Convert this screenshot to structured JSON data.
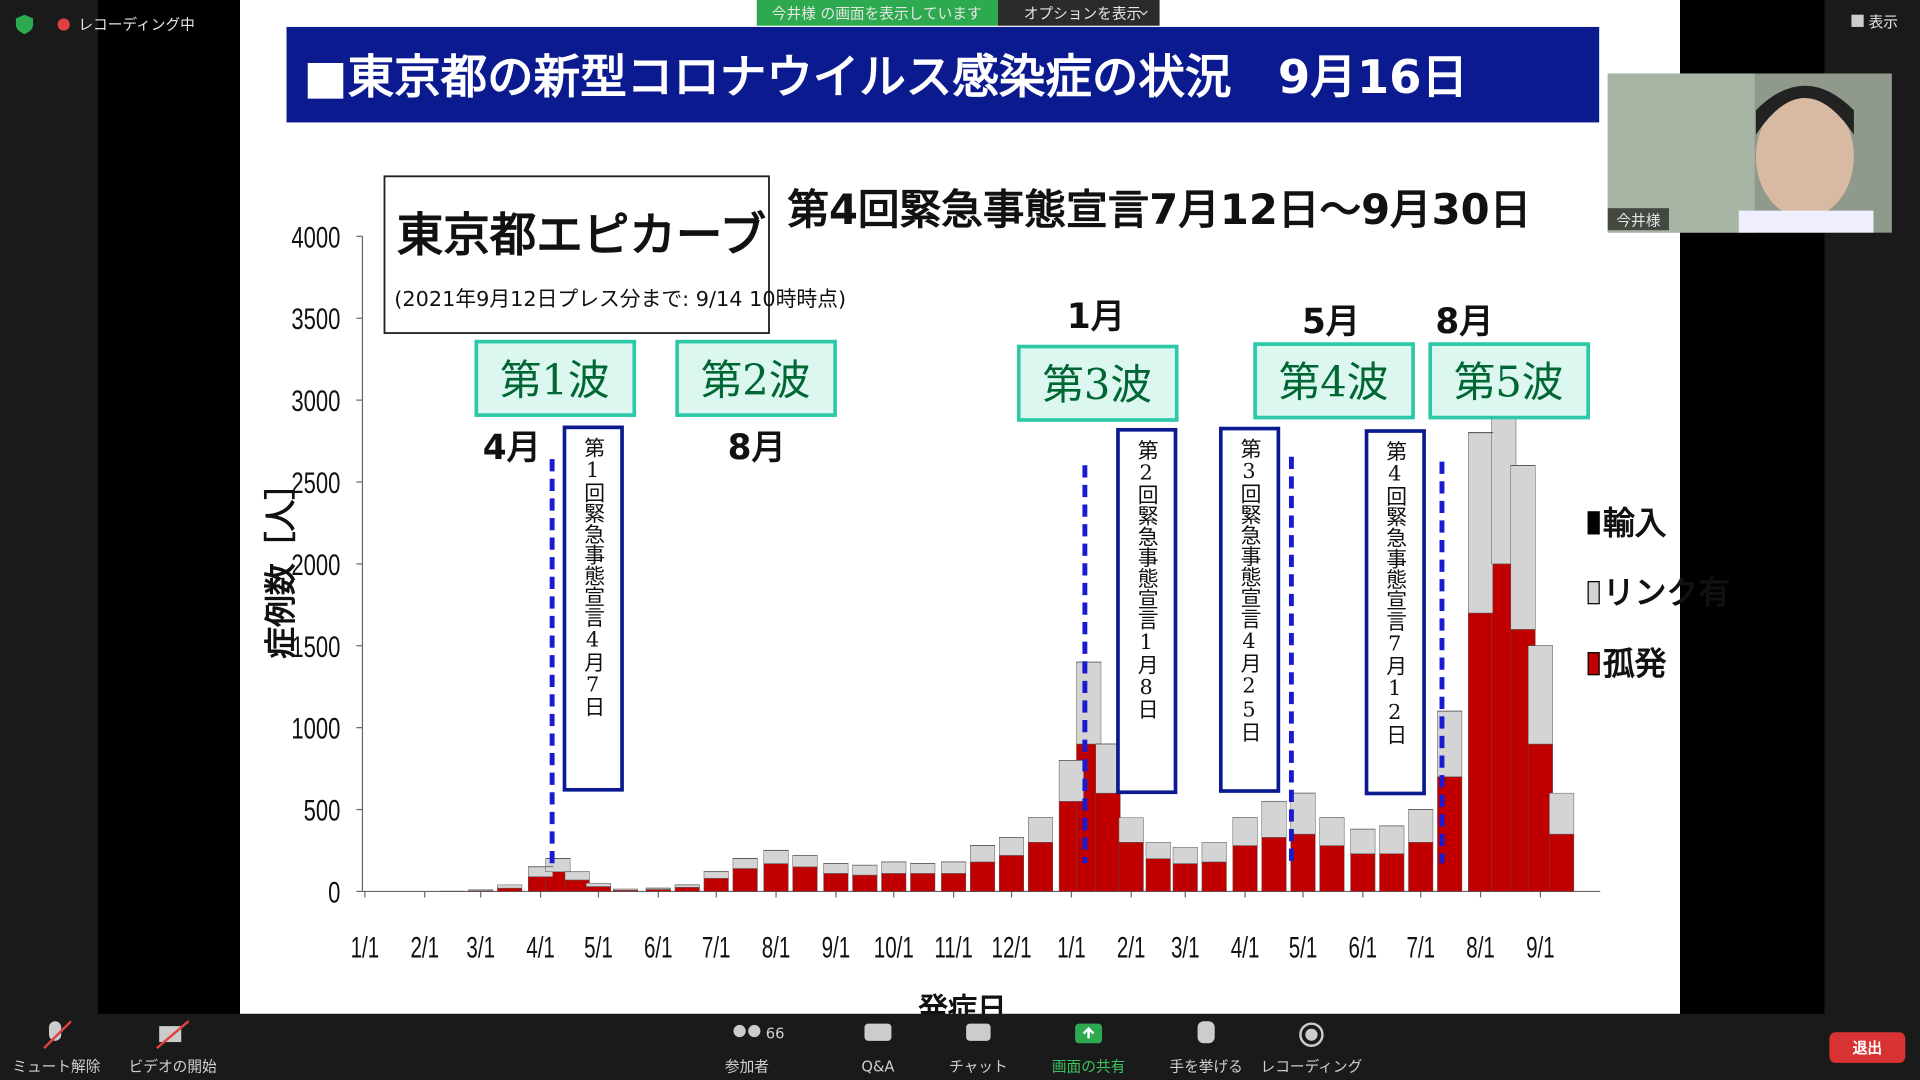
{
  "zoom": {
    "recording": "レコーディング中",
    "sharing_banner": "今井様 の画面を表示しています",
    "options": "オプションを表示",
    "view": "表示",
    "video_name": "今井様",
    "toolbar": {
      "mute": "ミュート解除",
      "video": "ビデオの開始",
      "participants_count": 66,
      "participants": "参加者",
      "qa": "Q&A",
      "chat": "チャット",
      "share": "画面の共有",
      "raise_hand": "手を挙げる",
      "record": "レコーディング",
      "leave": "退出"
    }
  },
  "slide": {
    "title": "■東京都の新型コロナウイルス感染症の状況　9月16日",
    "box_title": "東京都エピカーブ",
    "box_note": "(2021年9月12日プレス分まで: 9/14 10時時点)",
    "headline": "第4回緊急事態宣言7月12日～9月30日"
  },
  "chart_data": {
    "type": "bar",
    "stacked": true,
    "ylabel": "症例数［人］",
    "xlabel": "発症日",
    "x": [
      0,
      15,
      30,
      45,
      60,
      75,
      91,
      100,
      110,
      121,
      135,
      152,
      167,
      182,
      197,
      213,
      228,
      244,
      259,
      274,
      289,
      305,
      320,
      335,
      350,
      366,
      375,
      385,
      397,
      411,
      425,
      440,
      456,
      471,
      486,
      501,
      517,
      532,
      547,
      562,
      578,
      590,
      600,
      609,
      620
    ],
    "series": [
      {
        "name": "孤発",
        "color": "#c00000",
        "values": [
          0,
          0,
          0,
          1,
          5,
          20,
          90,
          120,
          70,
          30,
          8,
          12,
          25,
          80,
          140,
          170,
          150,
          110,
          100,
          110,
          110,
          110,
          180,
          220,
          300,
          550,
          900,
          600,
          300,
          200,
          170,
          180,
          280,
          330,
          350,
          280,
          230,
          230,
          300,
          700,
          1700,
          2000,
          1600,
          900,
          350
        ]
      },
      {
        "name": "リンク有",
        "color": "#d4d4d4",
        "values": [
          0,
          0,
          0,
          1,
          5,
          20,
          60,
          80,
          50,
          20,
          7,
          8,
          15,
          40,
          60,
          80,
          70,
          60,
          60,
          70,
          60,
          70,
          100,
          110,
          150,
          250,
          500,
          300,
          150,
          100,
          100,
          120,
          170,
          220,
          250,
          170,
          150,
          170,
          200,
          400,
          1100,
          1100,
          1000,
          600,
          250
        ]
      },
      {
        "name": "輸入",
        "color": "#000000",
        "values": [
          0,
          0,
          0,
          0,
          0,
          0,
          2,
          2,
          1,
          0,
          0,
          1,
          1,
          2,
          2,
          2,
          1,
          1,
          1,
          1,
          1,
          1,
          1,
          1,
          1,
          1,
          1,
          1,
          0,
          0,
          0,
          0,
          1,
          1,
          1,
          1,
          1,
          1,
          1,
          2,
          3,
          3,
          2,
          1,
          0
        ]
      }
    ],
    "xlim": [
      0,
      640
    ],
    "xticks": [
      {
        "value": 0,
        "label": "1/1"
      },
      {
        "value": 31,
        "label": "2/1"
      },
      {
        "value": 60,
        "label": "3/1"
      },
      {
        "value": 91,
        "label": "4/1"
      },
      {
        "value": 121,
        "label": "5/1"
      },
      {
        "value": 152,
        "label": "6/1"
      },
      {
        "value": 182,
        "label": "7/1"
      },
      {
        "value": 213,
        "label": "8/1"
      },
      {
        "value": 244,
        "label": "9/1"
      },
      {
        "value": 274,
        "label": "10/1"
      },
      {
        "value": 305,
        "label": "11/1"
      },
      {
        "value": 335,
        "label": "12/1"
      },
      {
        "value": 366,
        "label": "1/1"
      },
      {
        "value": 397,
        "label": "2/1"
      },
      {
        "value": 425,
        "label": "3/1"
      },
      {
        "value": 456,
        "label": "4/1"
      },
      {
        "value": 486,
        "label": "5/1"
      },
      {
        "value": 517,
        "label": "6/1"
      },
      {
        "value": 547,
        "label": "7/1"
      },
      {
        "value": 578,
        "label": "8/1"
      },
      {
        "value": 609,
        "label": "9/1"
      }
    ],
    "ylim": [
      0,
      4000
    ],
    "yticks": [
      0,
      500,
      1000,
      1500,
      2000,
      2500,
      3000,
      3500,
      4000
    ],
    "waves": [
      {
        "label": "第1波",
        "month": "4月"
      },
      {
        "label": "第2波",
        "month": "8月"
      },
      {
        "label": "第3波",
        "month": "1月"
      },
      {
        "label": "第4波",
        "month": "5月"
      },
      {
        "label": "第5波",
        "month": "8月"
      }
    ],
    "declarations": [
      {
        "label": "第1回緊急事態宣言4月7日",
        "day": 97
      },
      {
        "label": "第2回緊急事態宣言1月8日",
        "day": 373
      },
      {
        "label": "第3回緊急事態宣言4月25日",
        "day": 480
      },
      {
        "label": "第4回緊急事態宣言7月12日",
        "day": 558
      }
    ]
  }
}
